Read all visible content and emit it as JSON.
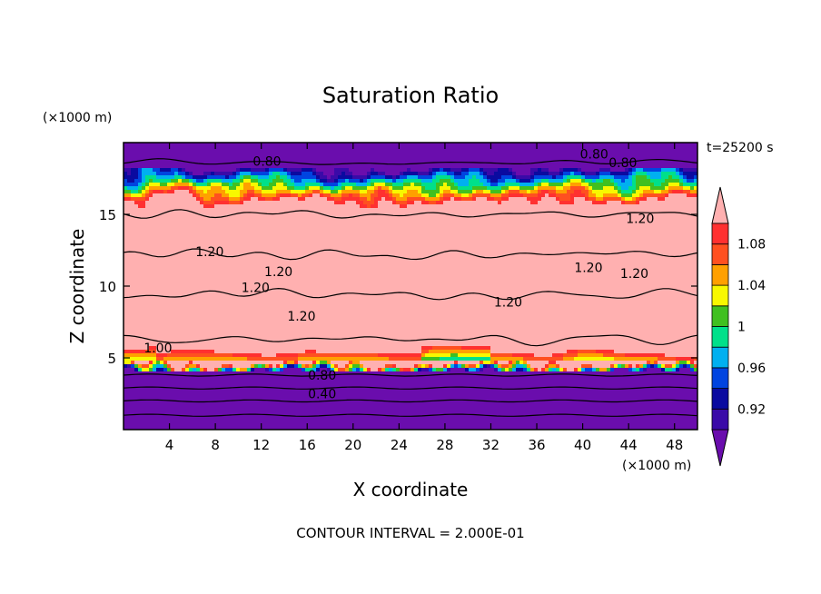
{
  "chart_data": {
    "type": "heatmap",
    "title": "Saturation Ratio",
    "xlabel": "X coordinate",
    "ylabel": "Z coordinate",
    "x_unit": "(×1000 m)",
    "y_unit": "(×1000 m)",
    "time_label": "t=25200 s",
    "footer": "CONTOUR INTERVAL = 2.000E-01",
    "xlim": [
      0,
      50
    ],
    "ylim": [
      0,
      20
    ],
    "x_ticks": [
      4,
      8,
      12,
      16,
      20,
      24,
      28,
      32,
      36,
      40,
      44,
      48
    ],
    "y_ticks": [
      5,
      10,
      15
    ],
    "colorbar": {
      "levels": [
        0.9,
        0.92,
        0.94,
        0.96,
        0.98,
        1.0,
        1.02,
        1.04,
        1.06,
        1.08,
        1.1
      ],
      "tick_labels": [
        "0.92",
        "0.96",
        "1",
        "1.04",
        "1.08"
      ],
      "colors": [
        "#6a0dad",
        "#3a0aa8",
        "#0a0aa0",
        "#0044e0",
        "#00b0f0",
        "#00e08a",
        "#40c020",
        "#f8f800",
        "#ffa000",
        "#ff5020",
        "#ff3030",
        "#ffb0b0"
      ]
    },
    "contour_labels": [
      {
        "text": "0.80",
        "x": 12.5,
        "y": 18.7
      },
      {
        "text": "0.80",
        "x": 41.0,
        "y": 19.2
      },
      {
        "text": "0.80",
        "x": 43.5,
        "y": 18.6
      },
      {
        "text": "1.20",
        "x": 45.0,
        "y": 14.7
      },
      {
        "text": "1.20",
        "x": 7.5,
        "y": 12.4
      },
      {
        "text": "1.20",
        "x": 13.5,
        "y": 11.0
      },
      {
        "text": "1.20",
        "x": 40.5,
        "y": 11.3
      },
      {
        "text": "1.20",
        "x": 44.5,
        "y": 10.9
      },
      {
        "text": "1.20",
        "x": 11.5,
        "y": 9.9
      },
      {
        "text": "1.20",
        "x": 15.5,
        "y": 7.9
      },
      {
        "text": "1.20",
        "x": 33.5,
        "y": 8.9
      },
      {
        "text": "0.80",
        "x": 17.3,
        "y": 3.8
      },
      {
        "text": "0.40",
        "x": 17.3,
        "y": 2.5
      },
      {
        "text": "1.00",
        "x": 3.0,
        "y": 5.7
      }
    ]
  }
}
